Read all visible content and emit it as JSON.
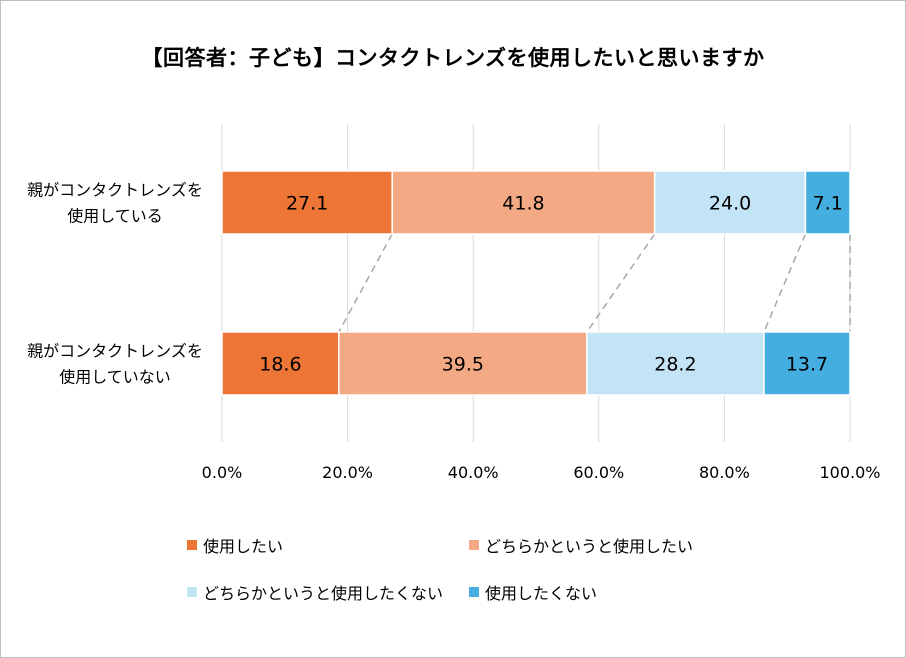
{
  "title": "【回答者：子ども】コンタクトレンズを使用したいと思いますか",
  "chart_data": {
    "type": "bar",
    "orientation": "horizontal",
    "stacked": true,
    "percent_stacked": true,
    "categories": [
      [
        "親がコンタクトレンズを",
        "使用している"
      ],
      [
        "親がコンタクトレンズを",
        "使用していない"
      ]
    ],
    "series": [
      {
        "name": "使用したい",
        "color": "#ed7535",
        "values": [
          27.1,
          18.6
        ]
      },
      {
        "name": "どちらかというと使用したい",
        "color": "#f3aa84",
        "values": [
          41.8,
          39.5
        ]
      },
      {
        "name": "どちらかというと使用したくない",
        "color": "#c3e4f6",
        "values": [
          24.0,
          28.2
        ]
      },
      {
        "name": "使用したくない",
        "color": "#45aee0",
        "values": [
          7.1,
          13.7
        ]
      }
    ],
    "value_labels": [
      [
        "27.1",
        "18.6"
      ],
      [
        "41.8",
        "39.5"
      ],
      [
        "24.0",
        "28.2"
      ],
      [
        "7.1",
        "13.7"
      ]
    ],
    "xlim": [
      0,
      100
    ],
    "xticks": [
      "0.0%",
      "20.0%",
      "40.0%",
      "60.0%",
      "80.0%",
      "100.0%"
    ],
    "grid": true,
    "series_lines": true,
    "legend_position": "bottom"
  }
}
